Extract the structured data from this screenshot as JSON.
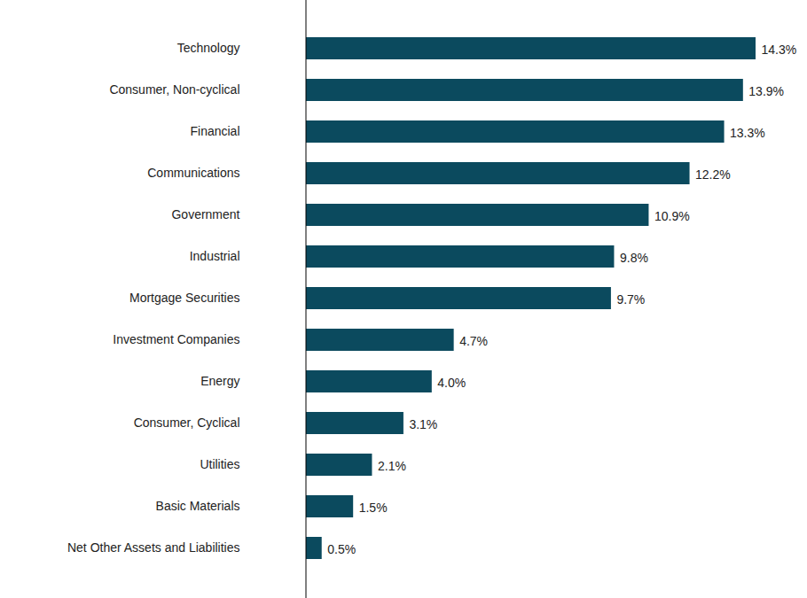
{
  "chart_data": {
    "type": "bar",
    "orientation": "horizontal",
    "categories": [
      "Technology",
      "Consumer, Non-cyclical",
      "Financial",
      "Communications",
      "Government",
      "Industrial",
      "Mortgage Securities",
      "Investment Companies",
      "Energy",
      "Consumer, Cyclical",
      "Utilities",
      "Basic Materials",
      "Net Other Assets and Liabilities"
    ],
    "values": [
      14.3,
      13.9,
      13.3,
      12.2,
      10.9,
      9.8,
      9.7,
      4.7,
      4.0,
      3.1,
      2.1,
      1.5,
      0.5
    ],
    "value_labels": [
      "14.3%",
      "13.9%",
      "13.3%",
      "12.2%",
      "10.9%",
      "9.8%",
      "9.7%",
      "4.7%",
      "4.0%",
      "3.1%",
      "2.1%",
      "1.5%",
      "0.5%"
    ],
    "color": "#0b4a5e",
    "data_labels": true,
    "tick_labels": "y"
  }
}
